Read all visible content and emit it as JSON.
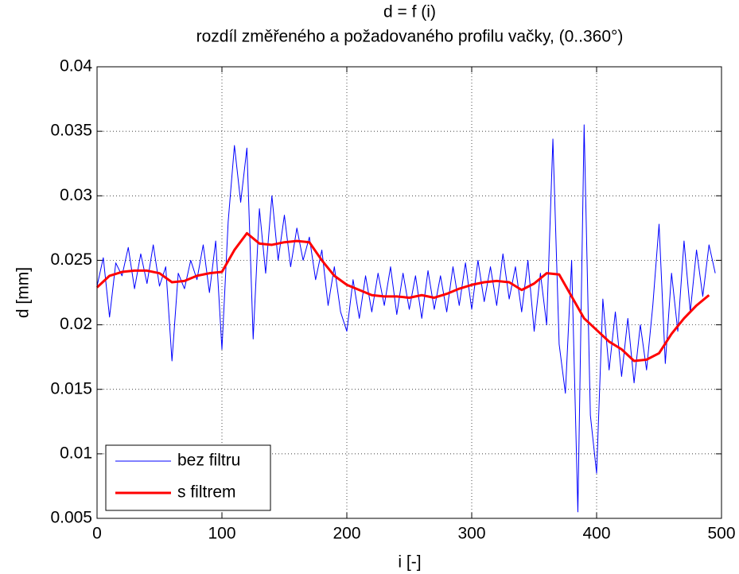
{
  "chart_data": {
    "type": "line",
    "title": "d = f (i)",
    "subtitle": "rozdíl změřeného a požadovaného profilu vačky, (0..360°)",
    "x_label": "i [-]",
    "y_label": "d [mm]",
    "xlim": [
      0,
      500
    ],
    "xticks": [
      0,
      100,
      200,
      300,
      400,
      500
    ],
    "ylim": [
      0.005,
      0.04
    ],
    "yticks": [
      0.005,
      0.01,
      0.015,
      0.02,
      0.025,
      0.03,
      0.035,
      0.04
    ],
    "grid": true,
    "legend": "lower left",
    "series": [
      {
        "name": "bez filtru",
        "color": "#0000ff",
        "width": 1,
        "x": [
          0,
          5,
          10,
          15,
          20,
          25,
          30,
          35,
          40,
          45,
          50,
          55,
          60,
          65,
          70,
          75,
          80,
          85,
          90,
          95,
          100,
          105,
          110,
          115,
          120,
          125,
          130,
          135,
          140,
          145,
          150,
          155,
          160,
          165,
          170,
          175,
          180,
          185,
          190,
          195,
          200,
          205,
          210,
          215,
          220,
          225,
          230,
          235,
          240,
          245,
          250,
          255,
          260,
          265,
          270,
          275,
          280,
          285,
          290,
          295,
          300,
          305,
          310,
          315,
          320,
          325,
          330,
          335,
          340,
          345,
          350,
          355,
          360,
          365,
          370,
          375,
          380,
          385,
          390,
          395,
          400,
          405,
          410,
          415,
          420,
          425,
          430,
          435,
          440,
          445,
          450,
          455,
          460,
          465,
          470,
          475,
          480,
          485,
          490,
          495
        ],
        "values": [
          0.023,
          0.0252,
          0.0206,
          0.0248,
          0.0238,
          0.026,
          0.0228,
          0.0255,
          0.0232,
          0.0262,
          0.023,
          0.0245,
          0.0172,
          0.024,
          0.0228,
          0.025,
          0.0235,
          0.0262,
          0.0225,
          0.0265,
          0.0181,
          0.028,
          0.0339,
          0.0295,
          0.0337,
          0.0189,
          0.029,
          0.024,
          0.03,
          0.025,
          0.0285,
          0.0245,
          0.0275,
          0.025,
          0.0268,
          0.0235,
          0.0258,
          0.0215,
          0.0245,
          0.021,
          0.0195,
          0.0235,
          0.0205,
          0.0238,
          0.021,
          0.024,
          0.0215,
          0.0245,
          0.0208,
          0.024,
          0.0212,
          0.0238,
          0.0205,
          0.0242,
          0.0212,
          0.0238,
          0.021,
          0.0245,
          0.0215,
          0.0248,
          0.0212,
          0.025,
          0.0218,
          0.0245,
          0.0215,
          0.0255,
          0.022,
          0.0245,
          0.021,
          0.025,
          0.0195,
          0.024,
          0.02,
          0.0344,
          0.0185,
          0.0147,
          0.025,
          0.0055,
          0.0355,
          0.013,
          0.0085,
          0.022,
          0.0165,
          0.021,
          0.016,
          0.0205,
          0.0155,
          0.02,
          0.0165,
          0.0215,
          0.0278,
          0.017,
          0.024,
          0.0195,
          0.0265,
          0.021,
          0.0258,
          0.0222,
          0.0262,
          0.024
        ]
      },
      {
        "name": "s filtrem",
        "color": "#ff0000",
        "width": 3,
        "x": [
          0,
          10,
          20,
          30,
          40,
          50,
          60,
          70,
          80,
          90,
          100,
          110,
          120,
          130,
          140,
          150,
          160,
          170,
          180,
          190,
          200,
          210,
          220,
          230,
          240,
          250,
          260,
          270,
          280,
          290,
          300,
          310,
          320,
          330,
          340,
          350,
          360,
          370,
          380,
          390,
          400,
          410,
          420,
          430,
          440,
          450,
          460,
          470,
          480,
          490
        ],
        "values": [
          0.0229,
          0.0238,
          0.0241,
          0.0242,
          0.0242,
          0.024,
          0.0233,
          0.0234,
          0.0238,
          0.024,
          0.0241,
          0.0258,
          0.0271,
          0.0263,
          0.0262,
          0.0264,
          0.0265,
          0.0264,
          0.025,
          0.0238,
          0.0231,
          0.0227,
          0.0223,
          0.0222,
          0.0222,
          0.0221,
          0.0223,
          0.0221,
          0.0224,
          0.0228,
          0.0231,
          0.0233,
          0.0234,
          0.0233,
          0.0227,
          0.0232,
          0.024,
          0.0239,
          0.0222,
          0.0205,
          0.0196,
          0.0187,
          0.0181,
          0.0172,
          0.0173,
          0.0178,
          0.0193,
          0.0205,
          0.0215,
          0.0223
        ]
      }
    ]
  }
}
